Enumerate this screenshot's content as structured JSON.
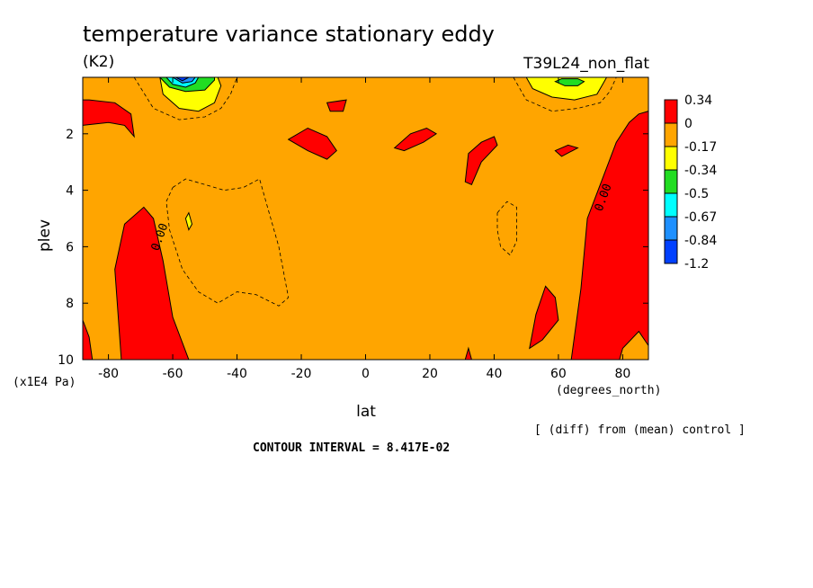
{
  "chart_data": {
    "type": "heatmap",
    "title": "temperature variance stationary eddy",
    "units": "(K2)",
    "experiment": "T39L24_non_flat",
    "xlabel": "lat",
    "xunits": "(degrees_north)",
    "ylabel": "plev",
    "yunits": "(x1E4 Pa)",
    "xlim": [
      -88,
      88
    ],
    "ylim": [
      0,
      10
    ],
    "y_inverted": true,
    "x_ticks": [
      -80,
      -60,
      -40,
      -20,
      0,
      20,
      40,
      60,
      80
    ],
    "y_ticks": [
      2,
      4,
      6,
      8,
      10
    ],
    "x_tick_labels": [
      "-80",
      "-60",
      "-40",
      "-20",
      "0",
      "20",
      "40",
      "60",
      "80"
    ],
    "y_tick_labels": [
      "2",
      "4",
      "6",
      "8",
      "10"
    ],
    "contour_label": "0.00",
    "contour_labels": [
      {
        "text": "0.00",
        "lat": -63,
        "plev": 5.7
      },
      {
        "text": "0.00",
        "lat": 75,
        "plev": 4.3
      }
    ],
    "footnote": "[ (diff) from (mean) control ]",
    "contour_interval_text": "CONTOUR INTERVAL = 8.417E-02",
    "colorbar": {
      "labels": [
        "0.34",
        "0",
        "-0.17",
        "-0.34",
        "-0.5",
        "-0.67",
        "-0.84",
        "-1.2"
      ],
      "colors": [
        "#ff0000",
        "#ffa500",
        "#ffff00",
        "#22dd22",
        "#00ffff",
        "#1e90ff",
        "#0040ff"
      ]
    },
    "regions": [
      {
        "level": "positive",
        "color": "#ff0000",
        "points": [
          [
            -88,
            1.7
          ],
          [
            -80,
            1.6
          ],
          [
            -75,
            1.7
          ],
          [
            -72,
            2.1
          ],
          [
            -73,
            1.3
          ],
          [
            -78,
            0.9
          ],
          [
            -86,
            0.8
          ],
          [
            -88,
            0.8
          ]
        ]
      },
      {
        "level": "positive",
        "color": "#ff0000",
        "points": [
          [
            -88,
            8.6
          ],
          [
            -86,
            9.2
          ],
          [
            -85,
            10
          ],
          [
            -88,
            10
          ]
        ]
      },
      {
        "level": "positive",
        "color": "#ff0000",
        "points": [
          [
            -76,
            10
          ],
          [
            -78,
            6.8
          ],
          [
            -75,
            5.2
          ],
          [
            -69,
            4.6
          ],
          [
            -66,
            5.0
          ],
          [
            -63,
            6.5
          ],
          [
            -60,
            8.5
          ],
          [
            -55,
            10
          ]
        ]
      },
      {
        "level": "positive",
        "color": "#ff0000",
        "points": [
          [
            -24,
            2.2
          ],
          [
            -18,
            1.8
          ],
          [
            -12,
            2.1
          ],
          [
            -9,
            2.6
          ],
          [
            -12,
            2.9
          ],
          [
            -18,
            2.6
          ]
        ]
      },
      {
        "level": "positive",
        "color": "#ff0000",
        "points": [
          [
            -12,
            0.9
          ],
          [
            -6,
            0.8
          ],
          [
            -7,
            1.2
          ],
          [
            -11,
            1.2
          ]
        ]
      },
      {
        "level": "positive",
        "color": "#ff0000",
        "points": [
          [
            9,
            2.5
          ],
          [
            14,
            2.0
          ],
          [
            19,
            1.8
          ],
          [
            22,
            2.0
          ],
          [
            18,
            2.3
          ],
          [
            12,
            2.6
          ]
        ]
      },
      {
        "level": "positive",
        "color": "#ff0000",
        "points": [
          [
            31,
            3.7
          ],
          [
            32,
            2.7
          ],
          [
            36,
            2.3
          ],
          [
            40,
            2.1
          ],
          [
            41,
            2.4
          ],
          [
            36,
            3.0
          ],
          [
            33,
            3.8
          ]
        ]
      },
      {
        "level": "positive",
        "color": "#ff0000",
        "points": [
          [
            51,
            9.6
          ],
          [
            53,
            8.4
          ],
          [
            56,
            7.4
          ],
          [
            59,
            7.8
          ],
          [
            60,
            8.6
          ],
          [
            55,
            9.3
          ]
        ]
      },
      {
        "level": "positive",
        "color": "#ff0000",
        "points": [
          [
            31,
            10
          ],
          [
            32,
            9.6
          ],
          [
            33,
            10
          ]
        ]
      },
      {
        "level": "positive",
        "color": "#ff0000",
        "points": [
          [
            64,
            10
          ],
          [
            67,
            7.5
          ],
          [
            69,
            5.0
          ],
          [
            74,
            3.5
          ],
          [
            78,
            2.3
          ],
          [
            82,
            1.6
          ],
          [
            85,
            1.3
          ],
          [
            88,
            1.2
          ],
          [
            88,
            9.5
          ],
          [
            85,
            9.0
          ],
          [
            80,
            9.6
          ],
          [
            79,
            10
          ]
        ]
      },
      {
        "level": "positive",
        "color": "#ff0000",
        "points": [
          [
            59,
            2.6
          ],
          [
            63,
            2.4
          ],
          [
            66,
            2.5
          ],
          [
            61,
            2.8
          ]
        ]
      },
      {
        "level": "negative-1",
        "color": "#ffff00",
        "points": [
          [
            -64,
            0
          ],
          [
            -63,
            0.6
          ],
          [
            -58,
            1.1
          ],
          [
            -52,
            1.2
          ],
          [
            -47,
            0.9
          ],
          [
            -45,
            0.3
          ],
          [
            -46,
            0
          ]
        ]
      },
      {
        "level": "negative-1",
        "color": "#ffff00",
        "points": [
          [
            -56,
            5.0
          ],
          [
            -55,
            4.8
          ],
          [
            -54,
            5.2
          ],
          [
            -55,
            5.4
          ]
        ]
      },
      {
        "level": "negative-1",
        "color": "#ffff00",
        "points": [
          [
            50,
            0
          ],
          [
            52,
            0.4
          ],
          [
            58,
            0.7
          ],
          [
            65,
            0.8
          ],
          [
            72,
            0.6
          ],
          [
            74,
            0.2
          ],
          [
            75,
            0
          ]
        ]
      },
      {
        "level": "negative-2",
        "color": "#22dd22",
        "points": [
          [
            -64,
            0
          ],
          [
            -61,
            0.35
          ],
          [
            -56,
            0.5
          ],
          [
            -50,
            0.45
          ],
          [
            -47,
            0.1
          ],
          [
            -47,
            0
          ]
        ]
      },
      {
        "level": "negative-2",
        "color": "#22dd22",
        "points": [
          [
            59,
            0.15
          ],
          [
            62,
            0.3
          ],
          [
            66,
            0.3
          ],
          [
            68,
            0.15
          ],
          [
            66,
            0.05
          ],
          [
            61,
            0.05
          ]
        ]
      },
      {
        "level": "negative-3",
        "color": "#00ffff",
        "points": [
          [
            -62,
            0
          ],
          [
            -60,
            0.25
          ],
          [
            -56,
            0.35
          ],
          [
            -53,
            0.2
          ],
          [
            -52,
            0
          ]
        ]
      },
      {
        "level": "negative-4",
        "color": "#1e90ff",
        "points": [
          [
            -60,
            0
          ],
          [
            -57,
            0.2
          ],
          [
            -54,
            0.15
          ],
          [
            -53,
            0
          ]
        ]
      },
      {
        "level": "negative-5",
        "color": "#0040ff",
        "points": [
          [
            -59,
            0
          ],
          [
            -57,
            0.12
          ],
          [
            -55,
            0
          ]
        ]
      }
    ],
    "dashed_contours": [
      {
        "points": [
          [
            -60,
            3.9
          ],
          [
            -56,
            3.6
          ],
          [
            -50,
            3.8
          ],
          [
            -44,
            4.0
          ],
          [
            -38,
            3.9
          ],
          [
            -33,
            3.6
          ],
          [
            -31,
            4.4
          ],
          [
            -27,
            6.0
          ],
          [
            -24,
            7.8
          ],
          [
            -27,
            8.1
          ],
          [
            -34,
            7.7
          ],
          [
            -40,
            7.6
          ],
          [
            -46,
            8.0
          ],
          [
            -52,
            7.6
          ],
          [
            -57,
            6.8
          ],
          [
            -61,
            5.4
          ],
          [
            -62,
            4.4
          ],
          [
            -60,
            3.9
          ]
        ]
      },
      {
        "points": [
          [
            41,
            4.8
          ],
          [
            44,
            4.4
          ],
          [
            47,
            4.6
          ],
          [
            47,
            5.8
          ],
          [
            45,
            6.3
          ],
          [
            42,
            6.0
          ],
          [
            41,
            5.4
          ],
          [
            41,
            4.8
          ]
        ]
      },
      {
        "points": [
          [
            -72,
            0
          ],
          [
            -66,
            1.1
          ],
          [
            -58,
            1.5
          ],
          [
            -50,
            1.4
          ],
          [
            -45,
            1.1
          ],
          [
            -42,
            0.6
          ],
          [
            -40,
            0
          ]
        ]
      },
      {
        "points": [
          [
            46,
            0
          ],
          [
            50,
            0.8
          ],
          [
            58,
            1.2
          ],
          [
            66,
            1.1
          ],
          [
            73,
            0.9
          ],
          [
            76,
            0.5
          ],
          [
            78,
            0
          ]
        ]
      }
    ]
  }
}
